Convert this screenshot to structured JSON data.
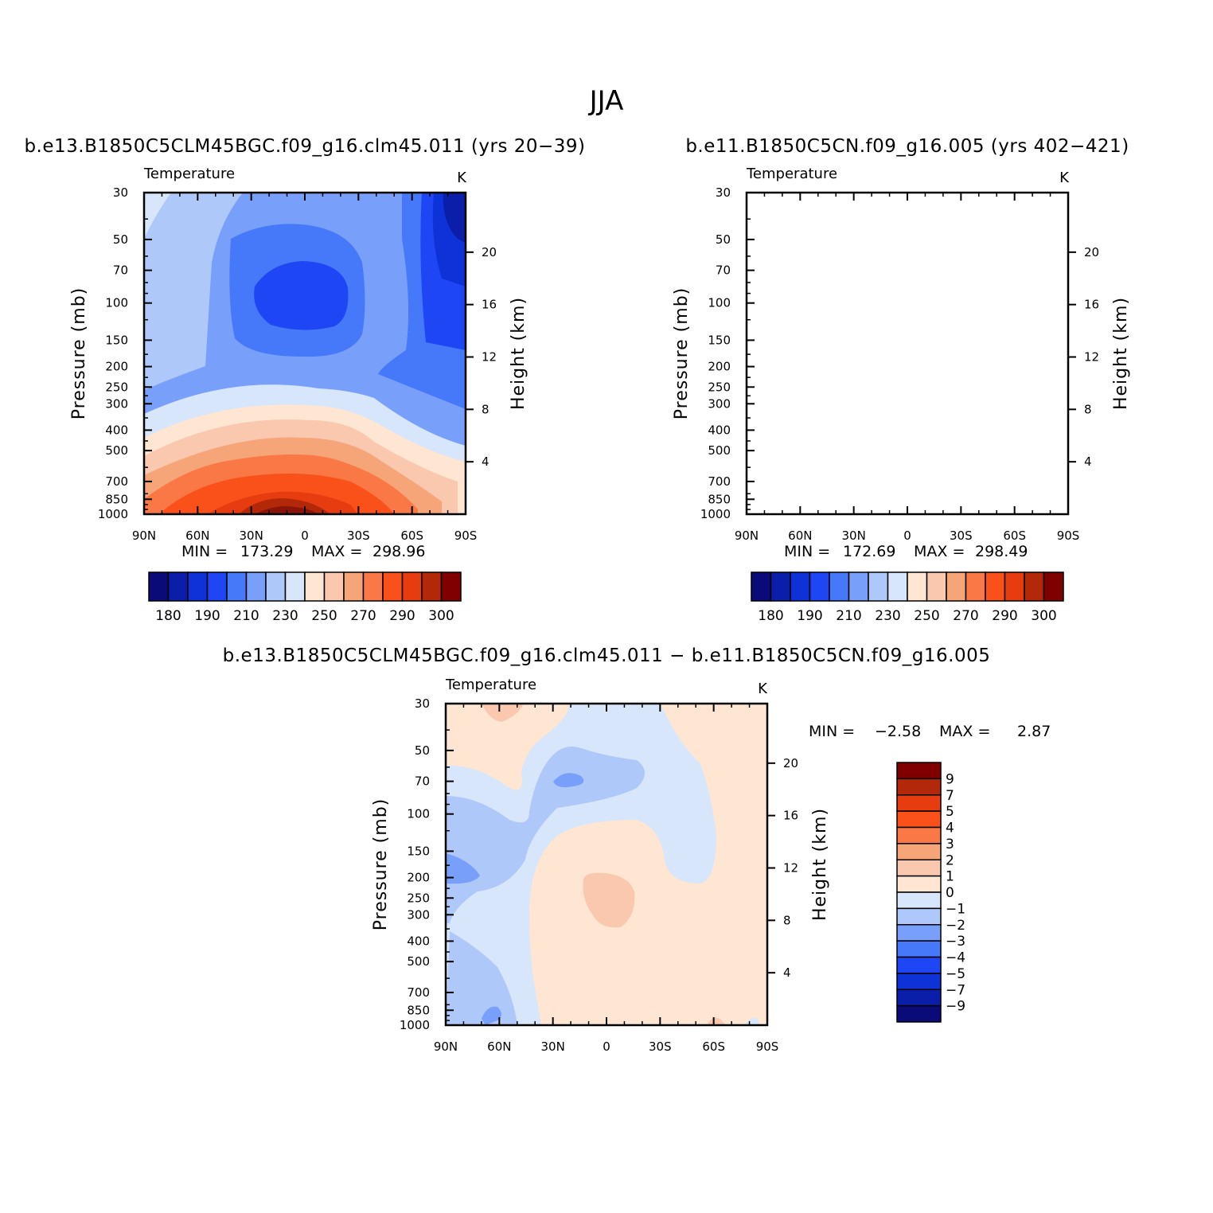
{
  "figure": {
    "title": "JJA"
  },
  "palette": {
    "temperature": [
      "#0a0a78",
      "#0a1eaa",
      "#0c32d8",
      "#1e46f5",
      "#4678fa",
      "#78a0fa",
      "#afc8fa",
      "#d7e6fa",
      "#ffe6d2",
      "#fac8af",
      "#f5a578",
      "#fa7846",
      "#fa5019",
      "#e63c0f",
      "#b4280a",
      "#800000"
    ],
    "difference": [
      "#800000",
      "#b4280a",
      "#e63c0f",
      "#fa5019",
      "#fa7846",
      "#f5a578",
      "#fac8af",
      "#ffe6d2",
      "#d7e6fa",
      "#afc8fa",
      "#78a0fa",
      "#4678fa",
      "#1e46f5",
      "#0c32d8",
      "#0a1eaa",
      "#0a0a78"
    ]
  },
  "chart_data": [
    {
      "id": "left",
      "type": "heatmap",
      "title": "b.e13.B1850C5CLM45BGC.f09_g16.clm45.011 (yrs 20−39)",
      "variable": "Temperature",
      "units": "K",
      "xlabel": "",
      "ylabel": "Pressure (mb)",
      "ylabel_right": "Height (km)",
      "x_ticks": [
        "90N",
        "60N",
        "30N",
        "0",
        "30S",
        "60S",
        "90S"
      ],
      "y_ticks": [
        "30",
        "50",
        "70",
        "100",
        "150",
        "200",
        "250",
        "300",
        "400",
        "500",
        "700",
        "850",
        "1000"
      ],
      "y_ticks_right": [
        "20",
        "16",
        "12",
        "8",
        "4"
      ],
      "stats": {
        "min_label": "MIN =",
        "min": "173.29",
        "max_label": "MAX =",
        "max": "298.96"
      },
      "colorbar_labels": [
        "180",
        "190",
        "210",
        "230",
        "250",
        "270",
        "290",
        "300"
      ],
      "levels": [
        180,
        190,
        200,
        210,
        220,
        230,
        240,
        250,
        260,
        270,
        280,
        290,
        295,
        300,
        305
      ]
    },
    {
      "id": "right",
      "type": "heatmap",
      "title": "b.e11.B1850C5CN.f09_g16.005 (yrs 402−421)",
      "variable": "Temperature",
      "units": "K",
      "xlabel": "",
      "ylabel": "Pressure (mb)",
      "ylabel_right": "Height (km)",
      "x_ticks": [
        "90N",
        "60N",
        "30N",
        "0",
        "30S",
        "60S",
        "90S"
      ],
      "y_ticks": [
        "30",
        "50",
        "70",
        "100",
        "150",
        "200",
        "250",
        "300",
        "400",
        "500",
        "700",
        "850",
        "1000"
      ],
      "y_ticks_right": [
        "20",
        "16",
        "12",
        "8",
        "4"
      ],
      "stats": {
        "min_label": "MIN =",
        "min": "172.69",
        "max_label": "MAX =",
        "max": "298.49"
      },
      "colorbar_labels": [
        "180",
        "190",
        "210",
        "230",
        "250",
        "270",
        "290",
        "300"
      ],
      "levels": [
        180,
        190,
        200,
        210,
        220,
        230,
        240,
        250,
        260,
        270,
        280,
        290,
        295,
        300,
        305
      ]
    },
    {
      "id": "diff",
      "type": "heatmap",
      "title": "b.e13.B1850C5CLM45BGC.f09_g16.clm45.011 − b.e11.B1850C5CN.f09_g16.005",
      "variable": "Temperature",
      "units": "K",
      "xlabel": "",
      "ylabel": "Pressure (mb)",
      "ylabel_right": "Height (km)",
      "x_ticks": [
        "90N",
        "60N",
        "30N",
        "0",
        "30S",
        "60S",
        "90S"
      ],
      "y_ticks": [
        "30",
        "50",
        "70",
        "100",
        "150",
        "200",
        "250",
        "300",
        "400",
        "500",
        "700",
        "850",
        "1000"
      ],
      "y_ticks_right": [
        "20",
        "16",
        "12",
        "8",
        "4"
      ],
      "stats": {
        "min_label": "MIN =",
        "min": "−2.58",
        "max_label": "MAX =",
        "max": "2.87"
      },
      "colorbar_labels": [
        "9",
        "7",
        "5",
        "4",
        "3",
        "2",
        "1",
        "0",
        "−1",
        "−2",
        "−3",
        "−4",
        "−5",
        "−7",
        "−9"
      ],
      "levels": [
        -9,
        -7,
        -5,
        -4,
        -3,
        -2,
        -1,
        0,
        1,
        2,
        3,
        4,
        5,
        7,
        9
      ]
    }
  ]
}
